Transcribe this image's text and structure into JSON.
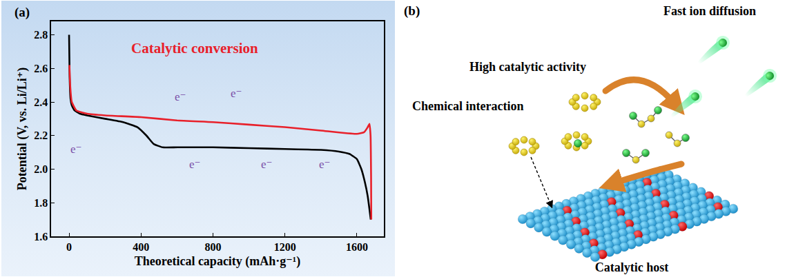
{
  "chart_data": {
    "type": "line",
    "panel_label": "(a)",
    "x_label": "Theoretical capacity (mAh·g⁻¹)",
    "y_label": "Potential (V, vs. Li/Li⁺)",
    "xlim": [
      -100,
      1750
    ],
    "ylim": [
      1.6,
      2.88
    ],
    "xticks": [
      0,
      400,
      800,
      1200,
      1600
    ],
    "yticks": [
      1.6,
      1.8,
      {
        "value": 2,
        "label": "2.0"
      },
      2.2,
      2.4,
      2.6,
      2.8
    ],
    "grid": false,
    "series": [
      {
        "color": "#000000",
        "x": [
          0,
          3,
          8,
          15,
          30,
          60,
          100,
          200,
          300,
          380,
          430,
          470,
          520,
          600,
          800,
          1000,
          1200,
          1400,
          1500,
          1560,
          1600,
          1625,
          1645,
          1660,
          1670,
          1677
        ],
        "values": [
          2.8,
          2.55,
          2.42,
          2.38,
          2.35,
          2.33,
          2.32,
          2.3,
          2.28,
          2.25,
          2.2,
          2.15,
          2.13,
          2.13,
          2.13,
          2.125,
          2.12,
          2.115,
          2.105,
          2.09,
          2.06,
          2.0,
          1.92,
          1.84,
          1.76,
          1.7
        ]
      },
      {
        "color": "#e8202a",
        "x": [
          1680,
          1679,
          1676,
          1670,
          1660,
          1640,
          1600,
          1400,
          1200,
          1000,
          800,
          600,
          400,
          200,
          100,
          40,
          15,
          6,
          2
        ],
        "values": [
          1.7,
          1.95,
          2.2,
          2.27,
          2.25,
          2.22,
          2.21,
          2.23,
          2.25,
          2.265,
          2.28,
          2.29,
          2.31,
          2.32,
          2.33,
          2.35,
          2.4,
          2.5,
          2.62
        ]
      }
    ],
    "annotations": [
      {
        "text": "Catalytic conversion",
        "x": 700,
        "y": 2.72,
        "color": "#e8202a"
      },
      {
        "text": "e⁻",
        "x": 620,
        "y": 2.43,
        "color": "#7b4fa8"
      },
      {
        "text": "e⁻",
        "x": 930,
        "y": 2.45,
        "color": "#7b4fa8"
      },
      {
        "text": "e⁻",
        "x": 40,
        "y": 2.12,
        "color": "#7b4fa8"
      },
      {
        "text": "e⁻",
        "x": 700,
        "y": 2.03,
        "color": "#7b4fa8"
      },
      {
        "text": "e⁻",
        "x": 1100,
        "y": 2.03,
        "color": "#7b4fa8"
      },
      {
        "text": "e⁻",
        "x": 1420,
        "y": 2.03,
        "color": "#7b4fa8"
      }
    ]
  },
  "diagram": {
    "panel_label": "(b)",
    "labels": {
      "fast_ion_diffusion": "Fast ion diffusion",
      "high_catalytic_activity": "High catalytic activity",
      "chemical_interaction": "Chemical interaction",
      "catalytic_host": "Catalytic host"
    }
  }
}
